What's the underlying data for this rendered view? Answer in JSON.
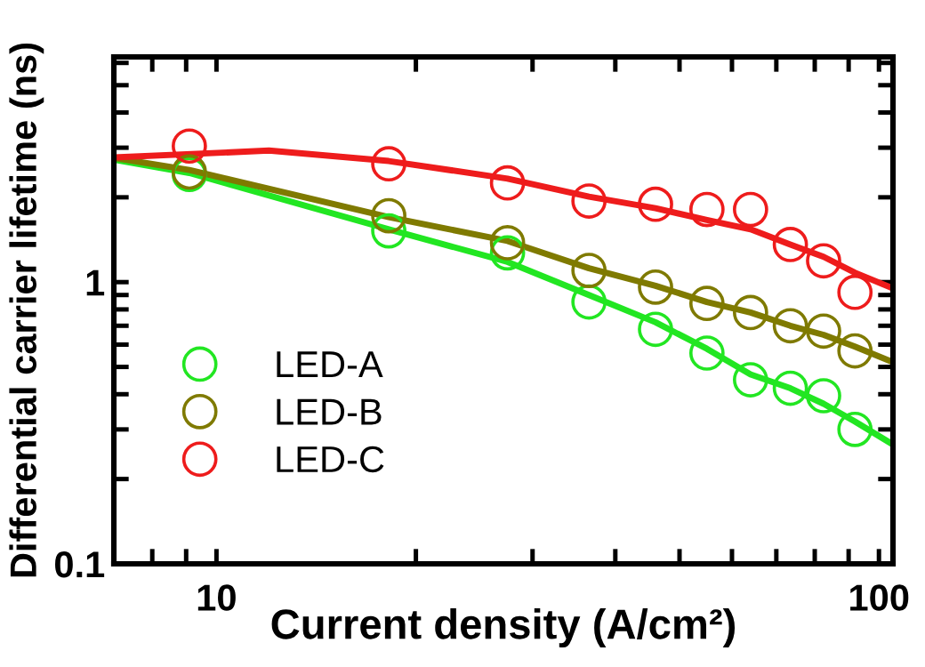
{
  "chart_data": {
    "type": "scatter",
    "xlabel": "Current density (A/cm²)",
    "ylabel": "Differential carrier lifetime (ns)",
    "log": "xy",
    "xlim": [
      7,
      105
    ],
    "ylim": [
      0.1,
      6.3
    ],
    "xticks": [
      {
        "value": 7,
        "label": null
      },
      {
        "value": 8,
        "label": null
      },
      {
        "value": 9,
        "label": null
      },
      10,
      {
        "value": 20,
        "label": null
      },
      {
        "value": 30,
        "label": null
      },
      {
        "value": 40,
        "label": null
      },
      {
        "value": 50,
        "label": null
      },
      {
        "value": 60,
        "label": null
      },
      {
        "value": 70,
        "label": null
      },
      {
        "value": 80,
        "label": null
      },
      {
        "value": 90,
        "label": null
      },
      100
    ],
    "yticks": [
      0.1,
      {
        "value": 0.2,
        "label": null
      },
      {
        "value": 0.3,
        "label": null
      },
      {
        "value": 0.4,
        "label": null
      },
      {
        "value": 0.5,
        "label": null
      },
      {
        "value": 0.6,
        "label": null
      },
      {
        "value": 0.7,
        "label": null
      },
      {
        "value": 0.8,
        "label": null
      },
      {
        "value": 0.9,
        "label": null
      },
      1,
      {
        "value": 2,
        "label": null
      },
      {
        "value": 3,
        "label": null
      },
      {
        "value": 4,
        "label": null
      },
      {
        "value": 5,
        "label": null
      },
      {
        "value": 6,
        "label": null
      }
    ],
    "marker": "circle",
    "legend": "bottom left",
    "grid": false,
    "x": [
      9.1,
      18.2,
      27.5,
      36.5,
      46,
      55,
      64,
      73.5,
      82.5,
      92
    ],
    "series": [
      {
        "name": "LED-A",
        "color": "#22e622",
        "values": [
          2.41,
          1.52,
          1.27,
          0.85,
          0.68,
          0.56,
          0.45,
          0.42,
          0.395,
          0.3
        ]
      },
      {
        "name": "LED-B",
        "color": "#7f7a00",
        "values": [
          2.46,
          1.72,
          1.38,
          1.1,
          0.96,
          0.84,
          0.78,
          0.7,
          0.67,
          0.57
        ]
      },
      {
        "name": "LED-C",
        "color": "#ee1c1c",
        "values": [
          3.04,
          2.63,
          2.25,
          1.94,
          1.89,
          1.81,
          1.81,
          1.36,
          1.19,
          0.92
        ]
      },
      {
        "type": "line",
        "marker": "none",
        "color": "#22e622",
        "x": [
          7,
          9.1,
          18.2,
          27.5,
          36.5,
          46,
          55,
          64,
          73.5,
          82.5,
          92,
          105
        ],
        "values": [
          2.72,
          2.44,
          1.54,
          1.18,
          0.9,
          0.72,
          0.58,
          0.47,
          0.42,
          0.37,
          0.32,
          0.265
        ]
      },
      {
        "type": "line",
        "marker": "none",
        "color": "#7f7a00",
        "x": [
          7,
          9.1,
          18.2,
          27.5,
          36.5,
          46,
          55,
          64,
          73.5,
          82.5,
          92,
          105
        ],
        "values": [
          2.76,
          2.5,
          1.7,
          1.4,
          1.12,
          0.97,
          0.85,
          0.78,
          0.7,
          0.65,
          0.59,
          0.52
        ]
      },
      {
        "type": "line",
        "marker": "none",
        "color": "#ee1c1c",
        "x": [
          7,
          12,
          18.2,
          27.5,
          36.5,
          46,
          55,
          64,
          73.5,
          82.5,
          92,
          105
        ],
        "values": [
          2.77,
          2.93,
          2.69,
          2.33,
          2.01,
          1.83,
          1.66,
          1.54,
          1.36,
          1.23,
          1.08,
          0.95
        ]
      }
    ]
  }
}
